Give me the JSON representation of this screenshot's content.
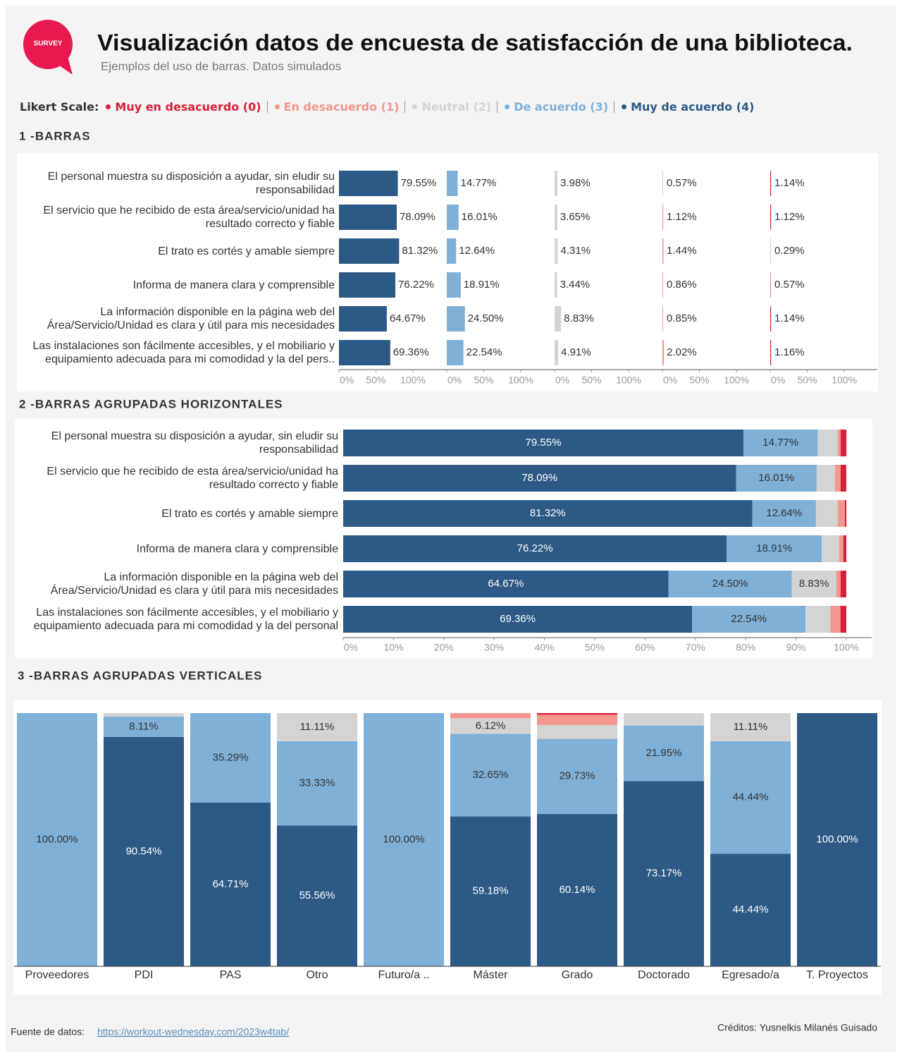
{
  "header": {
    "logo": "SURVEY",
    "title": "Visualización datos de encuesta de satisfacción de una biblioteca.",
    "subtitle": "Ejemplos del uso de barras. Datos simulados"
  },
  "legend": {
    "title": "Likert Scale:"
  },
  "chart_data": [
    {
      "type": "bar-panels",
      "title": "1 -BARRAS",
      "categories": [
        "El personal muestra su disposición a ayudar, sin eludir su responsabilidad",
        "El servicio que he recibido de esta área/servicio/unidad ha resultado correcto y fiable",
        "El trato es cortés y amable siempre",
        "Informa de manera clara y comprensible",
        "La información disponible en la página web del Área/Servicio/Unidad es clara y útil para mis necesidades",
        "Las instalaciones son fácilmente accesibles, y el mobiliario y equipamiento adecuada para mi comodidad y la del pers.."
      ],
      "series": [
        {
          "name": "Muy en desacuerdo (0)",
          "color": "#d62039",
          "values": [
            1.14,
            1.12,
            0.29,
            0.57,
            1.14,
            1.16
          ],
          "value_labels": [
            "1.14%",
            "1.12%",
            "0.29%",
            "0.57%",
            "1.14%",
            "1.16%"
          ]
        },
        {
          "name": "En desacuerdo (1)",
          "color": "#f4978e",
          "values": [
            0.57,
            1.12,
            1.44,
            0.86,
            0.85,
            2.02
          ],
          "value_labels": [
            "0.57%",
            "1.12%",
            "1.44%",
            "0.86%",
            "0.85%",
            "2.02%"
          ]
        },
        {
          "name": "Neutral (2)",
          "color": "#d4d4d4",
          "values": [
            3.98,
            3.65,
            4.31,
            3.44,
            8.83,
            4.91
          ],
          "value_labels": [
            "3.98%",
            "3.65%",
            "4.31%",
            "3.44%",
            "8.83%",
            "4.91%"
          ]
        },
        {
          "name": "De acuerdo (3)",
          "color": "#7fb0d7",
          "values": [
            14.77,
            16.01,
            12.64,
            18.91,
            24.5,
            22.54
          ],
          "value_labels": [
            "14.77%",
            "16.01%",
            "12.64%",
            "18.91%",
            "24.50%",
            "22.54%"
          ]
        },
        {
          "name": "Muy de acuerdo (4)",
          "color": "#2c5985",
          "values": [
            79.55,
            78.09,
            81.32,
            76.22,
            64.67,
            69.36
          ],
          "value_labels": [
            "79.55%",
            "78.09%",
            "81.32%",
            "76.22%",
            "64.67%",
            "69.36%"
          ]
        }
      ],
      "xlim": [
        0,
        100
      ],
      "xticks": [
        {
          "value": 0,
          "label": "0%"
        },
        {
          "value": 50,
          "label": "50%"
        },
        {
          "value": 100,
          "label": "100%"
        }
      ]
    },
    {
      "type": "stacked-hbar",
      "title": "2 -BARRAS AGRUPADAS HORIZONTALES",
      "categories": [
        "El personal muestra su disposición a ayudar, sin eludir su responsabilidad",
        "El servicio que he recibido de esta área/servicio/unidad ha resultado correcto y fiable",
        "El trato es cortés y amable siempre",
        "Informa de manera clara y comprensible",
        "La información disponible en la página web del Área/Servicio/Unidad es clara y útil para mis necesidades",
        "Las instalaciones son fácilmente accesibles, y el mobiliario y equipamiento adecuada para mi comodidad y la del personal"
      ],
      "series": [
        {
          "color": "#d62039",
          "values": [
            1.14,
            1.12,
            0.29,
            0.57,
            1.14,
            1.16
          ]
        },
        {
          "color": "#f4978e",
          "values": [
            0.57,
            1.12,
            1.44,
            0.86,
            0.85,
            2.02
          ]
        },
        {
          "color": "#d4d4d4",
          "values": [
            3.98,
            3.65,
            4.31,
            3.44,
            8.83,
            4.91
          ],
          "value_labels": [
            null,
            null,
            null,
            null,
            "8.83%",
            null
          ]
        },
        {
          "color": "#7fb0d7",
          "values": [
            14.77,
            16.01,
            12.64,
            18.91,
            24.5,
            22.54
          ],
          "value_labels": [
            "14.77%",
            "16.01%",
            "12.64%",
            "18.91%",
            "24.50%",
            "22.54%"
          ]
        },
        {
          "color": "#2c5985",
          "values": [
            79.55,
            78.09,
            81.32,
            76.22,
            64.67,
            69.36
          ],
          "value_labels": [
            "79.55%",
            "78.09%",
            "81.32%",
            "76.22%",
            "64.67%",
            "69.36%"
          ]
        }
      ],
      "xlim": [
        0,
        100
      ],
      "xticks": [
        {
          "value": 0,
          "label": "0%"
        },
        {
          "value": 10,
          "label": "10%"
        },
        {
          "value": 20,
          "label": "20%"
        },
        {
          "value": 30,
          "label": "30%"
        },
        {
          "value": 40,
          "label": "40%"
        },
        {
          "value": 50,
          "label": "50%"
        },
        {
          "value": 60,
          "label": "60%"
        },
        {
          "value": 70,
          "label": "70%"
        },
        {
          "value": 80,
          "label": "80%"
        },
        {
          "value": 90,
          "label": "90%"
        },
        {
          "value": 100,
          "label": "100%"
        }
      ]
    },
    {
      "type": "stacked-vbar",
      "title": "3 -BARRAS AGRUPADAS VERTICALES",
      "categories": [
        "Proveedores",
        "PDI",
        "PAS",
        "Otro",
        "Futuro/a ..",
        "Máster",
        "Grado",
        "Doctorado",
        "Egresado/a",
        "T. Proyectos"
      ],
      "series": [
        {
          "color": "#d62039",
          "values": [
            0,
            0,
            0,
            0,
            0,
            0,
            0.68,
            0,
            0,
            0
          ]
        },
        {
          "color": "#f4978e",
          "values": [
            0,
            0,
            0,
            0,
            0,
            2.04,
            4.05,
            0,
            0,
            0
          ]
        },
        {
          "color": "#d4d4d4",
          "values": [
            0,
            1.35,
            0,
            11.11,
            0,
            6.12,
            5.41,
            4.88,
            11.11,
            0
          ],
          "value_labels": [
            null,
            null,
            null,
            "11.11%",
            null,
            "6.12%",
            null,
            null,
            "11.11%",
            null
          ]
        },
        {
          "color": "#7fb0d7",
          "values": [
            100,
            8.11,
            35.29,
            33.33,
            100,
            32.65,
            29.73,
            21.95,
            44.44,
            0
          ],
          "value_labels": [
            "100.00%",
            "8.11%",
            "35.29%",
            "33.33%",
            "100.00%",
            "32.65%",
            "29.73%",
            "21.95%",
            "44.44%",
            null
          ]
        },
        {
          "color": "#2c5985",
          "values": [
            0,
            90.54,
            64.71,
            55.56,
            0,
            59.18,
            60.14,
            73.17,
            44.44,
            100
          ],
          "value_labels": [
            null,
            "90.54%",
            "64.71%",
            "55.56%",
            null,
            "59.18%",
            "60.14%",
            "73.17%",
            "44.44%",
            "100.00%"
          ]
        }
      ],
      "ylim": [
        0,
        100
      ]
    }
  ],
  "footer": {
    "source_label": "Fuente de datos:",
    "source_url": "https://workout-wednesday.com/2023w4tab/",
    "credits": "Créditos: Yusnelkis Milanés Guisado"
  }
}
